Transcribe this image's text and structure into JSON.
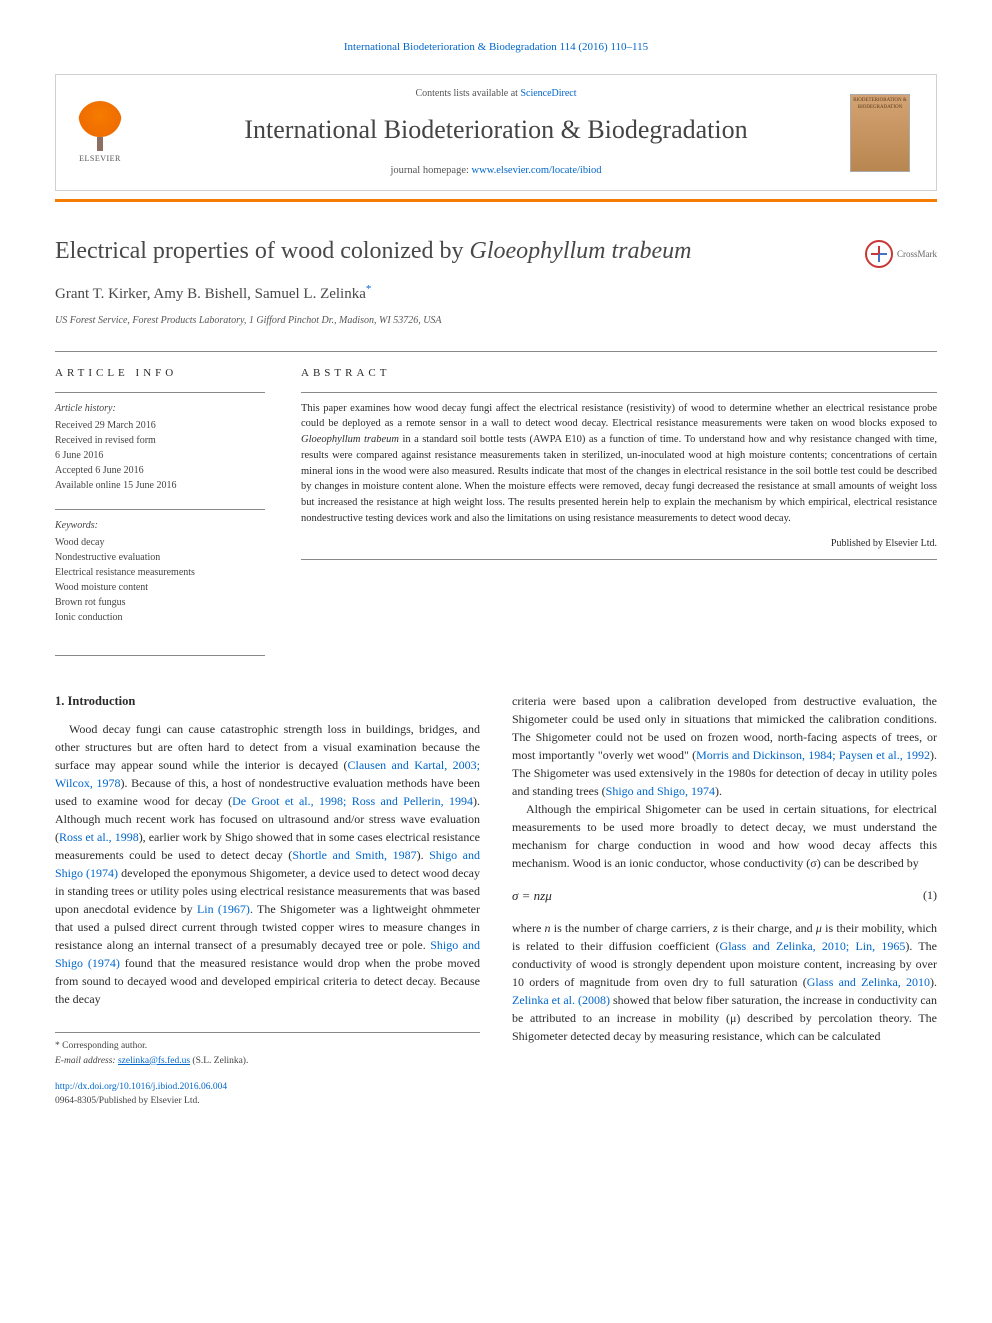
{
  "top_reference": "International Biodeterioration & Biodegradation 114 (2016) 110–115",
  "banner": {
    "contents_prefix": "Contents lists available at ",
    "contents_link": "ScienceDirect",
    "journal_name": "International Biodeterioration & Biodegradation",
    "homepage_prefix": "journal homepage: ",
    "homepage_link": "www.elsevier.com/locate/ibiod",
    "publisher_label": "ELSEVIER",
    "cover_label": "BIODETERIORATION & BIODEGRADATION"
  },
  "crossmark_label": "CrossMark",
  "title_plain": "Electrical properties of wood colonized by ",
  "title_italic": "Gloeophyllum trabeum",
  "authors": "Grant T. Kirker, Amy B. Bishell, Samuel L. Zelinka",
  "corr_marker": "*",
  "affiliation": "US Forest Service, Forest Products Laboratory, 1 Gifford Pinchot Dr., Madison, WI 53726, USA",
  "article_info": {
    "heading": "ARTICLE INFO",
    "history_label": "Article history:",
    "history": [
      "Received 29 March 2016",
      "Received in revised form",
      "6 June 2016",
      "Accepted 6 June 2016",
      "Available online 15 June 2016"
    ],
    "keywords_label": "Keywords:",
    "keywords": [
      "Wood decay",
      "Nondestructive evaluation",
      "Electrical resistance measurements",
      "Wood moisture content",
      "Brown rot fungus",
      "Ionic conduction"
    ]
  },
  "abstract": {
    "heading": "ABSTRACT",
    "text_parts": [
      "This paper examines how wood decay fungi affect the electrical resistance (resistivity) of wood to determine whether an electrical resistance probe could be deployed as a remote sensor in a wall to detect wood decay. Electrical resistance measurements were taken on wood blocks exposed to ",
      "Gloeophyllum trabeum",
      " in a standard soil bottle tests (AWPA E10) as a function of time. To understand how and why resistance changed with time, results were compared against resistance measurements taken in sterilized, un-inoculated wood at high moisture contents; concentrations of certain mineral ions in the wood were also measured. Results indicate that most of the changes in electrical resistance in the soil bottle test could be described by changes in moisture content alone. When the moisture effects were removed, decay fungi decreased the resistance at small amounts of weight loss but increased the resistance at high weight loss. The results presented herein help to explain the mechanism by which empirical, electrical resistance nondestructive testing devices work and also the limitations on using resistance measurements to detect wood decay."
    ],
    "copyright": "Published by Elsevier Ltd."
  },
  "section1_head": "1. Introduction",
  "col_left": "Wood decay fungi can cause catastrophic strength loss in buildings, bridges, and other structures but are often hard to detect from a visual examination because the surface may appear sound while the interior is decayed (<span class=\"ref\">Clausen and Kartal, 2003; Wilcox, 1978</span>). Because of this, a host of nondestructive evaluation methods have been used to examine wood for decay (<span class=\"ref\">De Groot et al., 1998; Ross and Pellerin, 1994</span>). Although much recent work has focused on ultrasound and/or stress wave evaluation (<span class=\"ref\">Ross et al., 1998</span>), earlier work by Shigo showed that in some cases electrical resistance measurements could be used to detect decay (<span class=\"ref\">Shortle and Smith, 1987</span>). <span class=\"ref\">Shigo and Shigo (1974)</span> developed the eponymous Shigometer, a device used to detect wood decay in standing trees or utility poles using electrical resistance measurements that was based upon anecdotal evidence by <span class=\"ref\">Lin (1967)</span>. The Shigometer was a lightweight ohmmeter that used a pulsed direct current through twisted copper wires to measure changes in resistance along an internal transect of a presumably decayed tree or pole. <span class=\"ref\">Shigo and Shigo (1974)</span> found that the measured resistance would drop when the probe moved from sound to decayed wood and developed empirical criteria to detect decay. Because the decay",
  "col_right_p1": "criteria were based upon a calibration developed from destructive evaluation, the Shigometer could be used only in situations that mimicked the calibration conditions. The Shigometer could not be used on frozen wood, north-facing aspects of trees, or most importantly \"overly wet wood\" (<span class=\"ref\">Morris and Dickinson, 1984; Paysen et al., 1992</span>). The Shigometer was used extensively in the 1980s for detection of decay in utility poles and standing trees (<span class=\"ref\">Shigo and Shigo, 1974</span>).",
  "col_right_p2": "Although the empirical Shigometer can be used in certain situations, for electrical measurements to be used more broadly to detect decay, we must understand the mechanism for charge conduction in wood and how wood decay affects this mechanism. Wood is an ionic conductor, whose conductivity (σ) can be described by",
  "equation": "σ = nzμ",
  "equation_num": "(1)",
  "col_right_p3": "where <em>n</em> is the number of charge carriers, <em>z</em> is their charge, and <em>μ</em> is their mobility, which is related to their diffusion coefficient (<span class=\"ref\">Glass and Zelinka, 2010; Lin, 1965</span>). The conductivity of wood is strongly dependent upon moisture content, increasing by over 10 orders of magnitude from oven dry to full saturation (<span class=\"ref\">Glass and Zelinka, 2010</span>). <span class=\"ref\">Zelinka et al. (2008)</span> showed that below fiber saturation, the increase in conductivity can be attributed to an increase in mobility (μ) described by percolation theory. The Shigometer detected decay by measuring resistance, which can be calculated",
  "footer": {
    "corr_label": "* Corresponding author.",
    "email_label": "E-mail address: ",
    "email": "szelinka@fs.fed.us",
    "email_suffix": " (S.L. Zelinka)."
  },
  "doi": {
    "link": "http://dx.doi.org/10.1016/j.ibiod.2016.06.004",
    "issn_line": "0964-8305/Published by Elsevier Ltd."
  },
  "colors": {
    "link": "#0066cc",
    "accent": "#f57c00",
    "text": "#2b2b2b",
    "muted": "#555555",
    "rule": "#888888"
  }
}
